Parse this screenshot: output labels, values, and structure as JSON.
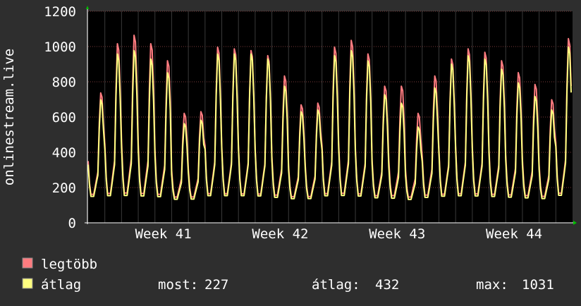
{
  "chart_data": {
    "type": "line",
    "ylabel": "onlinestream.live",
    "ylim": [
      0,
      1200
    ],
    "y_ticks": [
      "0",
      "200",
      "400",
      "600",
      "800",
      "1000",
      "1200"
    ],
    "x_ticks": [
      "Week 41",
      "Week 42",
      "Week 43",
      "Week 44"
    ],
    "grid": true,
    "legend_position": "bottom-left",
    "days": 29,
    "series": [
      {
        "name": "legtöbb",
        "color": "#ff7c80",
        "daily_peak": [
          760,
          1050,
          1100,
          1050,
          950,
          640,
          650,
          1030,
          1020,
          1010,
          980,
          860,
          690,
          700,
          1030,
          1070,
          990,
          800,
          800,
          640,
          860,
          960,
          1020,
          1000,
          950,
          880,
          810,
          720,
          1080
        ],
        "daily_min": [
          130,
          120,
          120,
          120,
          120,
          120,
          120,
          120,
          120,
          120,
          120,
          120,
          120,
          120,
          120,
          120,
          120,
          120,
          120,
          120,
          120,
          120,
          120,
          120,
          120,
          120,
          120,
          120,
          120
        ]
      },
      {
        "name": "átlag",
        "color": "#ffff80",
        "daily_peak": [
          720,
          990,
          1010,
          960,
          880,
          580,
          600,
          990,
          990,
          990,
          960,
          800,
          650,
          660,
          980,
          1010,
          950,
          750,
          700,
          560,
          790,
          930,
          980,
          960,
          900,
          820,
          740,
          660,
          1031
        ],
        "daily_min": [
          120,
          110,
          110,
          110,
          110,
          110,
          110,
          110,
          110,
          110,
          110,
          110,
          110,
          110,
          110,
          110,
          110,
          110,
          110,
          110,
          110,
          110,
          110,
          110,
          110,
          110,
          110,
          110,
          110
        ]
      }
    ]
  },
  "stats": {
    "current_label": "most:",
    "current_value": "227",
    "average_label": "átlag:",
    "average_value": "432",
    "max_label": "max:",
    "max_value": "1031"
  }
}
